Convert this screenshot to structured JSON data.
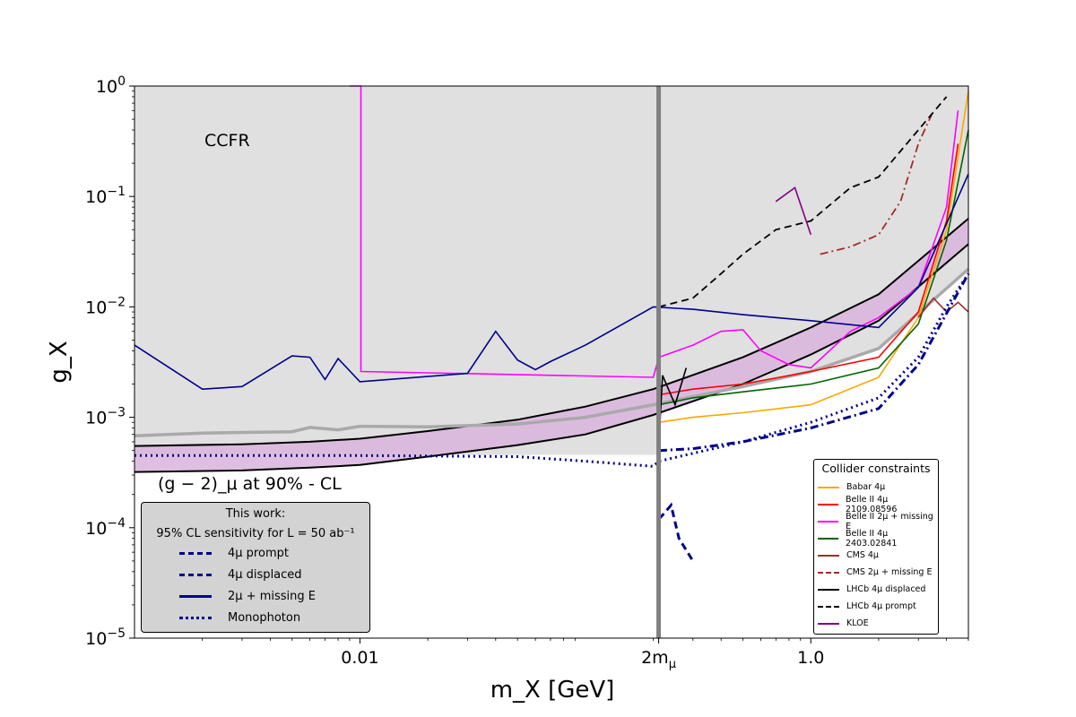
{
  "chart_data": {
    "type": "line",
    "title": "",
    "xlabel": "m_X [GeV]",
    "ylabel": "g_X",
    "xscale": "log",
    "yscale": "log",
    "xlim": [
      0.001,
      5.0
    ],
    "ylim": [
      1e-05,
      1.0
    ],
    "x_ticks": [
      {
        "value": 0.01,
        "label": "0.01"
      },
      {
        "value": 0.2113,
        "label": "2m_μ"
      },
      {
        "value": 1.0,
        "label": "1.0"
      }
    ],
    "y_ticks": [
      {
        "value": 1.0,
        "label": "10^0"
      },
      {
        "value": 0.1,
        "label": "10^-1"
      },
      {
        "value": 0.01,
        "label": "10^-2"
      },
      {
        "value": 0.001,
        "label": "10^-3"
      },
      {
        "value": 0.0001,
        "label": "10^-4"
      },
      {
        "value": 1e-05,
        "label": "10^-5"
      }
    ],
    "annotations": {
      "ccfr": "CCFR",
      "g2": "(g − 2)_μ at 90% - CL"
    },
    "g2_band": {
      "x": [
        0.001,
        0.003,
        0.006,
        0.01,
        0.02,
        0.05,
        0.1,
        0.2,
        0.5,
        1.0,
        2.0,
        5.0
      ],
      "upper": [
        0.00055,
        0.00057,
        0.0006,
        0.00064,
        0.00075,
        0.00095,
        0.00125,
        0.0018,
        0.0035,
        0.0065,
        0.013,
        0.063
      ],
      "lower": [
        0.00032,
        0.00033,
        0.00035,
        0.00037,
        0.00044,
        0.00056,
        0.0007,
        0.00105,
        0.002,
        0.0037,
        0.0075,
        0.037
      ]
    },
    "grey_band": {
      "x": [
        0.001,
        0.002,
        0.005,
        0.006,
        0.008,
        0.01,
        0.02,
        0.05,
        0.1,
        0.2,
        0.5,
        1.0,
        2.0,
        5.0
      ],
      "values": [
        0.00068,
        0.00072,
        0.00074,
        0.00081,
        0.00077,
        0.00083,
        0.00082,
        0.00087,
        0.001,
        0.0013,
        0.0019,
        0.0026,
        0.0042,
        0.022
      ]
    },
    "legend_collider_title": "Collider constraints",
    "legend_work_title_1": "This work:",
    "legend_work_title_2": "95% CL sensitivity for L = 50 ab⁻¹",
    "series": [
      {
        "name": "Babar 4μ",
        "color": "#ffa500",
        "style": "solid",
        "x": [
          0.212,
          0.3,
          0.5,
          1.0,
          2.0,
          3.0,
          4.0,
          5.0
        ],
        "y": [
          0.0009,
          0.001,
          0.0011,
          0.0013,
          0.0023,
          0.008,
          0.05,
          0.9
        ]
      },
      {
        "name": "Belle II 4μ 2109.08596",
        "color": "#ff0000",
        "style": "solid",
        "x": [
          0.212,
          0.3,
          0.5,
          1.0,
          2.0,
          3.0,
          4.0,
          4.5
        ],
        "y": [
          0.0016,
          0.0018,
          0.002,
          0.0026,
          0.0035,
          0.009,
          0.06,
          0.3
        ]
      },
      {
        "name": "Belle II 2μ + missing E",
        "color": "#ff00ff",
        "style": "solid",
        "x": [
          0.009,
          0.0101,
          0.0101,
          0.2,
          0.212,
          0.3,
          0.4,
          0.5,
          0.6,
          0.8,
          1.0,
          1.5,
          2.0,
          3.0,
          4.0,
          4.5
        ],
        "y": [
          1.0,
          1.0,
          0.0026,
          0.0023,
          0.0035,
          0.0045,
          0.006,
          0.0062,
          0.004,
          0.003,
          0.0028,
          0.006,
          0.008,
          0.015,
          0.08,
          0.6
        ]
      },
      {
        "name": "Belle II 4μ 2403.02841",
        "color": "#006400",
        "style": "solid",
        "x": [
          0.212,
          0.3,
          0.5,
          1.0,
          2.0,
          3.0,
          4.0,
          5.0
        ],
        "y": [
          0.0013,
          0.0015,
          0.0017,
          0.002,
          0.0028,
          0.007,
          0.04,
          0.4
        ]
      },
      {
        "name": "CMS 4μ",
        "color": "#a52a2a",
        "style": "solid",
        "x": [
          3.0,
          3.5,
          4.0,
          4.5,
          5.0
        ],
        "y": [
          0.008,
          0.012,
          0.009,
          0.011,
          0.009
        ]
      },
      {
        "name": "CMS 2μ + missing E",
        "color": "#a52a2a",
        "style": "dashdot",
        "x": [
          1.1,
          1.5,
          2.0,
          2.5,
          3.0,
          3.5
        ],
        "y": [
          0.03,
          0.035,
          0.045,
          0.09,
          0.3,
          0.6
        ]
      },
      {
        "name": "LHCb 4μ displaced",
        "color": "#000000",
        "style": "solid",
        "x": [
          0.212,
          0.22,
          0.25,
          0.28
        ],
        "y": [
          0.0006,
          0.0024,
          0.0013,
          0.0028
        ]
      },
      {
        "name": "LHCb 4μ prompt",
        "color": "#000000",
        "style": "dashed",
        "x": [
          0.212,
          0.3,
          0.4,
          0.5,
          0.7,
          1.0,
          1.5,
          2.0,
          3.0,
          4.0
        ],
        "y": [
          0.01,
          0.012,
          0.02,
          0.03,
          0.05,
          0.06,
          0.12,
          0.15,
          0.4,
          0.8
        ]
      },
      {
        "name": "KLOE",
        "color": "#800080",
        "style": "solid",
        "x": [
          0.7,
          0.85,
          1.0
        ],
        "y": [
          0.09,
          0.12,
          0.045
        ]
      },
      {
        "name": "4μ prompt",
        "color": "#00008b",
        "style": "dashdot",
        "x": [
          0.212,
          0.3,
          0.5,
          1.0,
          2.0,
          3.0,
          5.0
        ],
        "y": [
          0.0005,
          0.00052,
          0.0006,
          0.0008,
          0.0012,
          0.003,
          0.02
        ]
      },
      {
        "name": "4μ displaced",
        "color": "#00008b",
        "style": "dashed",
        "x": [
          0.212,
          0.22,
          0.24,
          0.26,
          0.3
        ],
        "y": [
          0.00012,
          0.00013,
          0.00016,
          8e-05,
          5e-05
        ]
      },
      {
        "name": "2μ + missing E",
        "color": "#00008b",
        "style": "solid",
        "x": [
          0.001,
          0.002,
          0.003,
          0.005,
          0.006,
          0.007,
          0.008,
          0.01,
          0.03,
          0.04,
          0.05,
          0.06,
          0.07,
          0.1,
          0.2,
          0.3,
          0.5,
          1.0,
          2.0,
          3.0,
          5.0
        ],
        "y": [
          0.0045,
          0.0018,
          0.0019,
          0.0036,
          0.0035,
          0.0022,
          0.0034,
          0.0021,
          0.0025,
          0.006,
          0.0033,
          0.0027,
          0.0032,
          0.0045,
          0.01,
          0.0095,
          0.0085,
          0.0075,
          0.0065,
          0.015,
          0.16
        ]
      },
      {
        "name": "Monophoton",
        "color": "#00008b",
        "style": "dotted",
        "x": [
          0.001,
          0.01,
          0.05,
          0.1,
          0.2,
          0.212,
          0.5,
          1.0,
          2.0,
          3.0,
          4.0,
          5.0
        ],
        "y": [
          0.00045,
          0.00045,
          0.00044,
          0.0004,
          0.00036,
          0.0004,
          0.0006,
          0.0009,
          0.0015,
          0.0035,
          0.01,
          0.02
        ]
      }
    ]
  }
}
